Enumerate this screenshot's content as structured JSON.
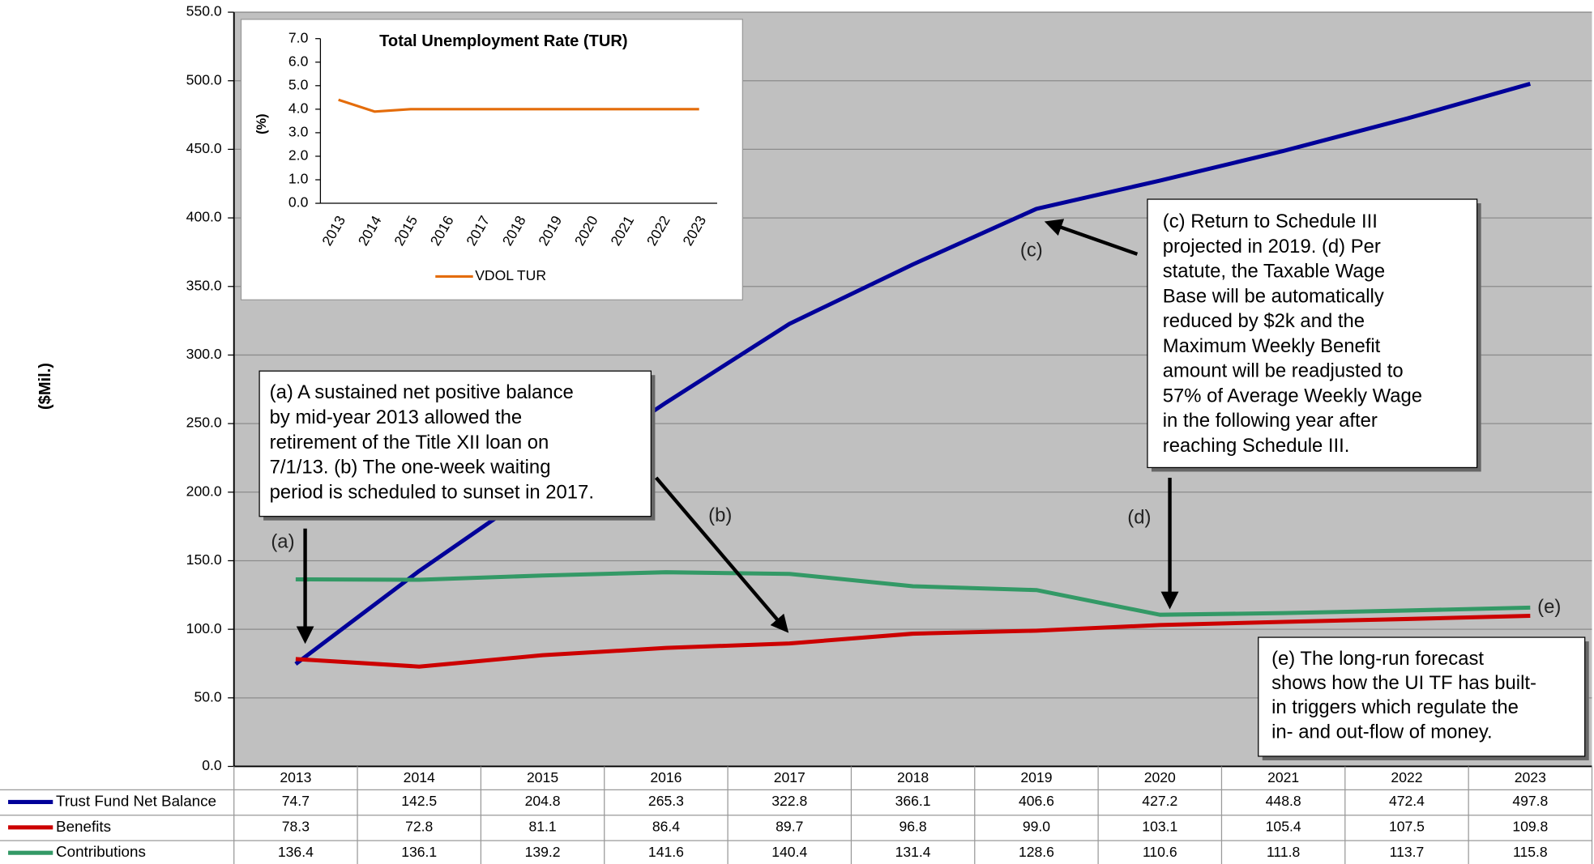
{
  "chart_data": [
    {
      "type": "line",
      "ylabel": "($Mil.)",
      "categories": [
        "2013",
        "2014",
        "2015",
        "2016",
        "2017",
        "2018",
        "2019",
        "2020",
        "2021",
        "2022",
        "2023"
      ],
      "series": [
        {
          "name": "Trust Fund Net Balance",
          "color": "#000099",
          "values": [
            74.7,
            142.5,
            204.8,
            265.3,
            322.8,
            366.1,
            406.6,
            427.2,
            448.8,
            472.4,
            497.8
          ],
          "value_labels": [
            "74.7",
            "142.5",
            "204.8",
            "265.3",
            "322.8",
            "366.1",
            "406.6",
            "427.2",
            "448.8",
            "472.4",
            "497.8"
          ]
        },
        {
          "name": "Benefits",
          "color": "#cc0000",
          "values": [
            78.3,
            72.8,
            81.1,
            86.4,
            89.7,
            96.8,
            99.0,
            103.1,
            105.4,
            107.5,
            109.8
          ],
          "value_labels": [
            "78.3",
            "72.8",
            "81.1",
            "86.4",
            "89.7",
            "96.8",
            "99.0",
            "103.1",
            "105.4",
            "107.5",
            "109.8"
          ]
        },
        {
          "name": "Contributions",
          "color": "#339966",
          "values": [
            136.4,
            136.1,
            139.2,
            141.6,
            140.4,
            131.4,
            128.6,
            110.6,
            111.8,
            113.7,
            115.8
          ],
          "value_labels": [
            "136.4",
            "136.1",
            "139.2",
            "141.6",
            "140.4",
            "131.4",
            "128.6",
            "110.6",
            "111.8",
            "113.7",
            "115.8"
          ]
        }
      ],
      "ylim": [
        0,
        550
      ],
      "yticks": [
        {
          "value": 0,
          "label": "0.0"
        },
        {
          "value": 50,
          "label": "50.0"
        },
        {
          "value": 100,
          "label": "100.0"
        },
        {
          "value": 150,
          "label": "150.0"
        },
        {
          "value": 200,
          "label": "200.0"
        },
        {
          "value": 250,
          "label": "250.0"
        },
        {
          "value": 300,
          "label": "300.0"
        },
        {
          "value": 350,
          "label": "350.0"
        },
        {
          "value": 400,
          "label": "400.0"
        },
        {
          "value": 450,
          "label": "450.0"
        },
        {
          "value": 500,
          "label": "500.0"
        },
        {
          "value": 550,
          "label": "550.0"
        }
      ],
      "grid": true,
      "annotations": [
        {
          "label": "(a)",
          "text": [
            "(a) A sustained net positive balance",
            "by mid-year 2013 allowed the",
            "retirement of the Title XII loan on",
            "7/1/13.  (b) The one-week waiting",
            "period is scheduled to sunset in 2017."
          ]
        },
        {
          "label": "(b)"
        },
        {
          "label": "(c)",
          "text": [
            "(c) Return to Schedule III",
            "projected in 2019.  (d) Per",
            "statute, the Taxable Wage",
            "Base will be automatically",
            "reduced by $2k and the",
            "Maximum Weekly Benefit",
            "amount will be readjusted to",
            "57% of Average Weekly Wage",
            "in the following year after",
            "reaching Schedule III."
          ]
        },
        {
          "label": "(d)"
        },
        {
          "label": "(e)",
          "text": [
            "(e) The long-run forecast",
            "shows how the UI TF has built-",
            "in triggers which regulate the",
            "in- and out-flow of money."
          ]
        }
      ]
    },
    {
      "type": "line",
      "title": "Total Unemployment Rate (TUR)",
      "ylabel": "(%)",
      "categories": [
        "2013",
        "2014",
        "2015",
        "2016",
        "2017",
        "2018",
        "2019",
        "2020",
        "2021",
        "2022",
        "2023"
      ],
      "series": [
        {
          "name": "VDOL TUR",
          "color": "#e46c0a",
          "values": [
            4.4,
            3.9,
            4.0,
            4.0,
            4.0,
            4.0,
            4.0,
            4.0,
            4.0,
            4.0,
            4.0
          ]
        }
      ],
      "ylim": [
        0,
        7
      ],
      "yticks": [
        {
          "value": 0,
          "label": "0.0"
        },
        {
          "value": 1,
          "label": "1.0"
        },
        {
          "value": 2,
          "label": "2.0"
        },
        {
          "value": 3,
          "label": "3.0"
        },
        {
          "value": 4,
          "label": "4.0"
        },
        {
          "value": 5,
          "label": "5.0"
        },
        {
          "value": 6,
          "label": "6.0"
        },
        {
          "value": 7,
          "label": "7.0"
        }
      ],
      "grid": false
    }
  ]
}
